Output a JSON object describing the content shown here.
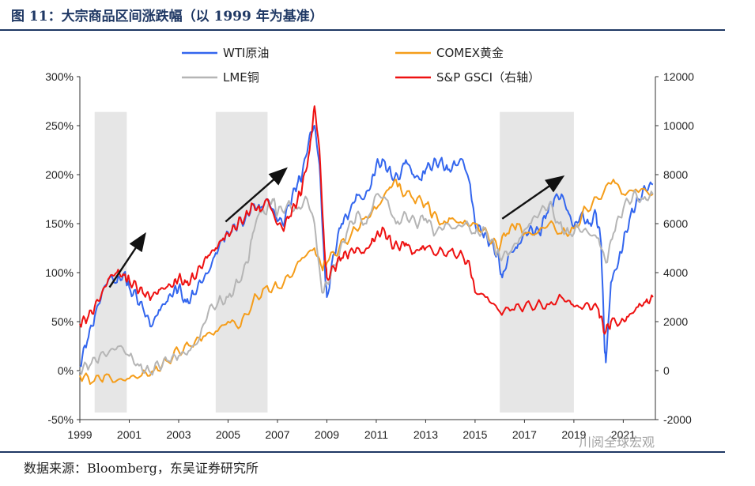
{
  "figure": {
    "title": "图 11：大宗商品区间涨跌幅（以 1999 年为基准）",
    "source": "数据来源：Bloomberg，东吴证券研究所",
    "watermark": "川阅全球宏观"
  },
  "chart_data": {
    "type": "line",
    "title": "",
    "xlabel": "",
    "ylabel": "",
    "x_ticks": [
      "1999",
      "2001",
      "2003",
      "2005",
      "2007",
      "2009",
      "2011",
      "2013",
      "2015",
      "2017",
      "2019",
      "2021"
    ],
    "left_axis": {
      "ticks": [
        "300%",
        "250%",
        "200%",
        "150%",
        "100%",
        "50%",
        "0%",
        "-50%"
      ],
      "ylim": [
        -50,
        300
      ]
    },
    "right_axis": {
      "ticks": [
        "12000",
        "10000",
        "8000",
        "6000",
        "4000",
        "2000",
        "0",
        "-2000"
      ],
      "ylim": [
        -2000,
        12000
      ]
    },
    "xlim": [
      1999,
      2022.3
    ],
    "shaded_periods": [
      [
        1999.6,
        2000.9
      ],
      [
        2004.5,
        2006.6
      ],
      [
        2016.0,
        2019.0
      ]
    ],
    "arrows": [
      {
        "from": [
          2000.2,
          85
        ],
        "to": [
          2001.6,
          138
        ]
      },
      {
        "from": [
          2004.9,
          152
        ],
        "to": [
          2007.3,
          205
        ]
      },
      {
        "from": [
          2016.1,
          155
        ],
        "to": [
          2018.5,
          197
        ]
      }
    ],
    "series": [
      {
        "name": "WTI原油",
        "axis": "left",
        "color": "#3366ee",
        "x": [
          1999.0,
          1999.3,
          1999.6,
          1999.9,
          2000.2,
          2000.5,
          2000.8,
          2001.0,
          2001.3,
          2001.6,
          2001.9,
          2002.2,
          2002.5,
          2002.8,
          2003.0,
          2003.3,
          2003.6,
          2003.9,
          2004.2,
          2004.5,
          2004.8,
          2005.1,
          2005.4,
          2005.7,
          2006.0,
          2006.3,
          2006.6,
          2006.9,
          2007.2,
          2007.5,
          2007.8,
          2008.0,
          2008.3,
          2008.5,
          2008.7,
          2008.9,
          2009.0,
          2009.3,
          2009.6,
          2009.9,
          2010.2,
          2010.5,
          2010.8,
          2011.0,
          2011.3,
          2011.6,
          2011.9,
          2012.2,
          2012.5,
          2012.8,
          2013.0,
          2013.3,
          2013.6,
          2013.9,
          2014.2,
          2014.5,
          2014.8,
          2015.0,
          2015.3,
          2015.6,
          2015.9,
          2016.1,
          2016.4,
          2016.7,
          2017.0,
          2017.3,
          2017.6,
          2017.9,
          2018.2,
          2018.5,
          2018.8,
          2019.0,
          2019.3,
          2019.6,
          2019.9,
          2020.1,
          2020.25,
          2020.3,
          2020.5,
          2020.8,
          2021.0,
          2021.3,
          2021.6,
          2021.9,
          2022.2
        ],
        "values": [
          5,
          30,
          55,
          80,
          95,
          90,
          100,
          85,
          75,
          60,
          45,
          62,
          70,
          80,
          85,
          70,
          78,
          90,
          100,
          120,
          135,
          140,
          150,
          155,
          170,
          165,
          175,
          160,
          150,
          170,
          190,
          200,
          240,
          250,
          210,
          110,
          75,
          120,
          150,
          160,
          180,
          175,
          190,
          210,
          215,
          200,
          195,
          215,
          200,
          195,
          205,
          210,
          215,
          205,
          210,
          215,
          190,
          150,
          140,
          130,
          120,
          95,
          120,
          125,
          140,
          145,
          140,
          160,
          175,
          180,
          160,
          145,
          160,
          150,
          160,
          130,
          20,
          10,
          90,
          110,
          130,
          160,
          175,
          185,
          190
        ]
      },
      {
        "name": "COMEX黄金",
        "axis": "left",
        "color": "#f59d1a",
        "x": [
          1999.0,
          1999.5,
          2000.0,
          2000.5,
          2001.0,
          2001.5,
          2002.0,
          2002.5,
          2003.0,
          2003.5,
          2004.0,
          2004.5,
          2005.0,
          2005.5,
          2006.0,
          2006.5,
          2007.0,
          2007.5,
          2008.0,
          2008.5,
          2008.8,
          2009.0,
          2009.5,
          2010.0,
          2010.5,
          2011.0,
          2011.5,
          2011.8,
          2012.0,
          2012.5,
          2013.0,
          2013.3,
          2013.7,
          2014.0,
          2014.5,
          2015.0,
          2015.5,
          2015.9,
          2016.3,
          2016.7,
          2017.0,
          2017.5,
          2018.0,
          2018.5,
          2019.0,
          2019.5,
          2020.0,
          2020.6,
          2021.0,
          2021.5,
          2022.2
        ],
        "values": [
          -5,
          -12,
          -5,
          -10,
          -8,
          -5,
          0,
          10,
          20,
          25,
          35,
          40,
          50,
          45,
          70,
          85,
          85,
          95,
          115,
          125,
          105,
          110,
          125,
          140,
          155,
          165,
          185,
          195,
          185,
          175,
          170,
          160,
          150,
          155,
          150,
          150,
          140,
          125,
          140,
          150,
          140,
          140,
          150,
          140,
          145,
          165,
          175,
          195,
          180,
          185,
          180
        ]
      },
      {
        "name": "LME铜",
        "axis": "left",
        "color": "#b5b5b5",
        "x": [
          1999.0,
          1999.4,
          1999.8,
          2000.2,
          2000.6,
          2001.0,
          2001.4,
          2001.8,
          2002.2,
          2002.6,
          2003.0,
          2003.4,
          2003.8,
          2004.2,
          2004.6,
          2005.0,
          2005.4,
          2005.8,
          2006.0,
          2006.3,
          2006.5,
          2006.8,
          2007.0,
          2007.4,
          2007.8,
          2008.2,
          2008.5,
          2008.8,
          2009.0,
          2009.4,
          2009.8,
          2010.2,
          2010.6,
          2011.0,
          2011.4,
          2011.8,
          2012.2,
          2012.6,
          2013.0,
          2013.4,
          2013.8,
          2014.2,
          2014.6,
          2015.0,
          2015.4,
          2015.8,
          2016.0,
          2016.4,
          2016.8,
          2017.2,
          2017.6,
          2018.0,
          2018.4,
          2018.8,
          2019.2,
          2019.6,
          2020.0,
          2020.3,
          2020.6,
          2021.0,
          2021.4,
          2021.8,
          2022.2
        ],
        "values": [
          0,
          5,
          15,
          20,
          25,
          15,
          5,
          0,
          5,
          10,
          15,
          20,
          30,
          60,
          70,
          75,
          90,
          110,
          140,
          165,
          160,
          175,
          160,
          170,
          165,
          175,
          150,
          80,
          90,
          110,
          140,
          160,
          150,
          180,
          175,
          150,
          160,
          150,
          155,
          140,
          150,
          145,
          150,
          140,
          145,
          125,
          115,
          120,
          135,
          150,
          160,
          170,
          150,
          140,
          145,
          140,
          135,
          110,
          140,
          165,
          180,
          175,
          180
        ]
      },
      {
        "name": "S&P GSCI（右轴）",
        "axis": "right",
        "color": "#ee1111",
        "x": [
          1999.0,
          1999.3,
          1999.6,
          1999.9,
          2000.2,
          2000.5,
          2000.8,
          2001.0,
          2001.3,
          2001.6,
          2001.9,
          2002.2,
          2002.5,
          2002.8,
          2003.0,
          2003.3,
          2003.6,
          2003.9,
          2004.2,
          2004.5,
          2004.8,
          2005.1,
          2005.4,
          2005.7,
          2006.0,
          2006.3,
          2006.6,
          2006.9,
          2007.2,
          2007.5,
          2007.8,
          2008.0,
          2008.3,
          2008.5,
          2008.7,
          2008.9,
          2009.0,
          2009.3,
          2009.6,
          2009.9,
          2010.2,
          2010.5,
          2010.8,
          2011.0,
          2011.3,
          2011.6,
          2011.9,
          2012.2,
          2012.5,
          2012.8,
          2013.0,
          2013.5,
          2014.0,
          2014.5,
          2014.8,
          2015.0,
          2015.5,
          2016.0,
          2016.5,
          2017.0,
          2017.5,
          2018.0,
          2018.5,
          2018.9,
          2019.2,
          2019.6,
          2020.0,
          2020.25,
          2020.5,
          2020.9,
          2021.2,
          2021.6,
          2021.9,
          2022.2
        ],
        "values": [
          1900,
          2100,
          2600,
          3200,
          3800,
          4000,
          3900,
          3700,
          3400,
          3100,
          3000,
          3300,
          3400,
          3500,
          3800,
          3600,
          3800,
          4200,
          4700,
          5000,
          5400,
          5600,
          6000,
          6300,
          6800,
          6500,
          7000,
          6200,
          5800,
          6300,
          6900,
          7500,
          9000,
          10800,
          9000,
          5000,
          3800,
          4200,
          4600,
          4800,
          5000,
          4800,
          5200,
          5500,
          5800,
          5200,
          5000,
          5200,
          4800,
          5000,
          5000,
          4800,
          4900,
          4700,
          4200,
          3200,
          3000,
          2400,
          2500,
          2600,
          2700,
          2700,
          3000,
          2700,
          2600,
          2700,
          2500,
          1500,
          2000,
          2000,
          2200,
          2600,
          2800,
          3000
        ]
      }
    ]
  }
}
